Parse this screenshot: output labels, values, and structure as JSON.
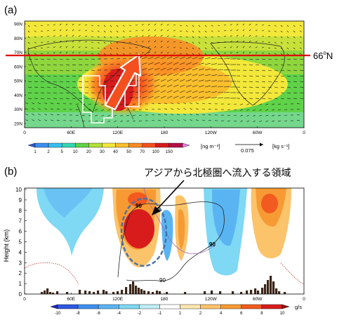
{
  "chart_data": [
    {
      "panel": "(a)",
      "type": "heatmap",
      "description_printed": "",
      "lat_ticks": [
        "90N",
        "80N",
        "70N",
        "60N",
        "50N",
        "40N",
        "30N",
        "20N"
      ],
      "lon_ticks": [
        "0",
        "60E",
        "120E",
        "180",
        "120W",
        "60W",
        "0"
      ],
      "reference_line": {
        "lat": 66,
        "label": "66",
        "label_sup": "o",
        "label_suffix": "N",
        "color": "#e00000"
      },
      "colorbar": {
        "levels": [
          "1",
          "2",
          "5",
          "10",
          "20",
          "30",
          "40",
          "50",
          "70",
          "100",
          "150"
        ],
        "colors": [
          "#2f5bd6",
          "#3d8ef0",
          "#35c0f0",
          "#35d6b0",
          "#5fd24a",
          "#b3e03a",
          "#f3e83a",
          "#fbbf2c",
          "#fb8a26",
          "#f4501f",
          "#d81c1c",
          "#b30f49",
          "#e97ee6"
        ],
        "unit": "[ng m⁻³]"
      },
      "vector_key": {
        "value": "0.075",
        "unit": "[kg s⁻¹]"
      },
      "field_description": "aerosol concentration high over East Asia / North Pacific 20N-60N, lower elsewhere"
    },
    {
      "panel": "(b)",
      "type": "heatmap",
      "annotation": "アジアから北極圏へ流入する領域",
      "ylabel": "Height (km)",
      "ylim": [
        0,
        10
      ],
      "y_ticks": [
        "0",
        "1",
        "2",
        "3",
        "4",
        "5",
        "6",
        "7",
        "8",
        "9",
        "10"
      ],
      "lon_ticks": [
        "0",
        "60E",
        "120E",
        "180",
        "120W",
        "60W",
        "0"
      ],
      "contour_labels": [
        "90",
        "90",
        "90"
      ],
      "colorbar": {
        "levels": [
          "-10",
          "-8",
          "-6",
          "-4",
          "-2",
          "-1",
          "1",
          "2",
          "4",
          "6",
          "8",
          "10"
        ],
        "colors": [
          "#1d28b8",
          "#2f58e0",
          "#3d8ef0",
          "#5ab4f2",
          "#7fd8f4",
          "#bfeef8",
          "#ffffff",
          "#fde6b0",
          "#fbc36a",
          "#f79a33",
          "#f25a1f",
          "#d81c1c",
          "#9c0d0d"
        ],
        "unit": "g/s"
      },
      "bars_description": "black bars near surface (0-1.7 km) showing flux magnitude, peaks near 120E and 60W"
    }
  ]
}
